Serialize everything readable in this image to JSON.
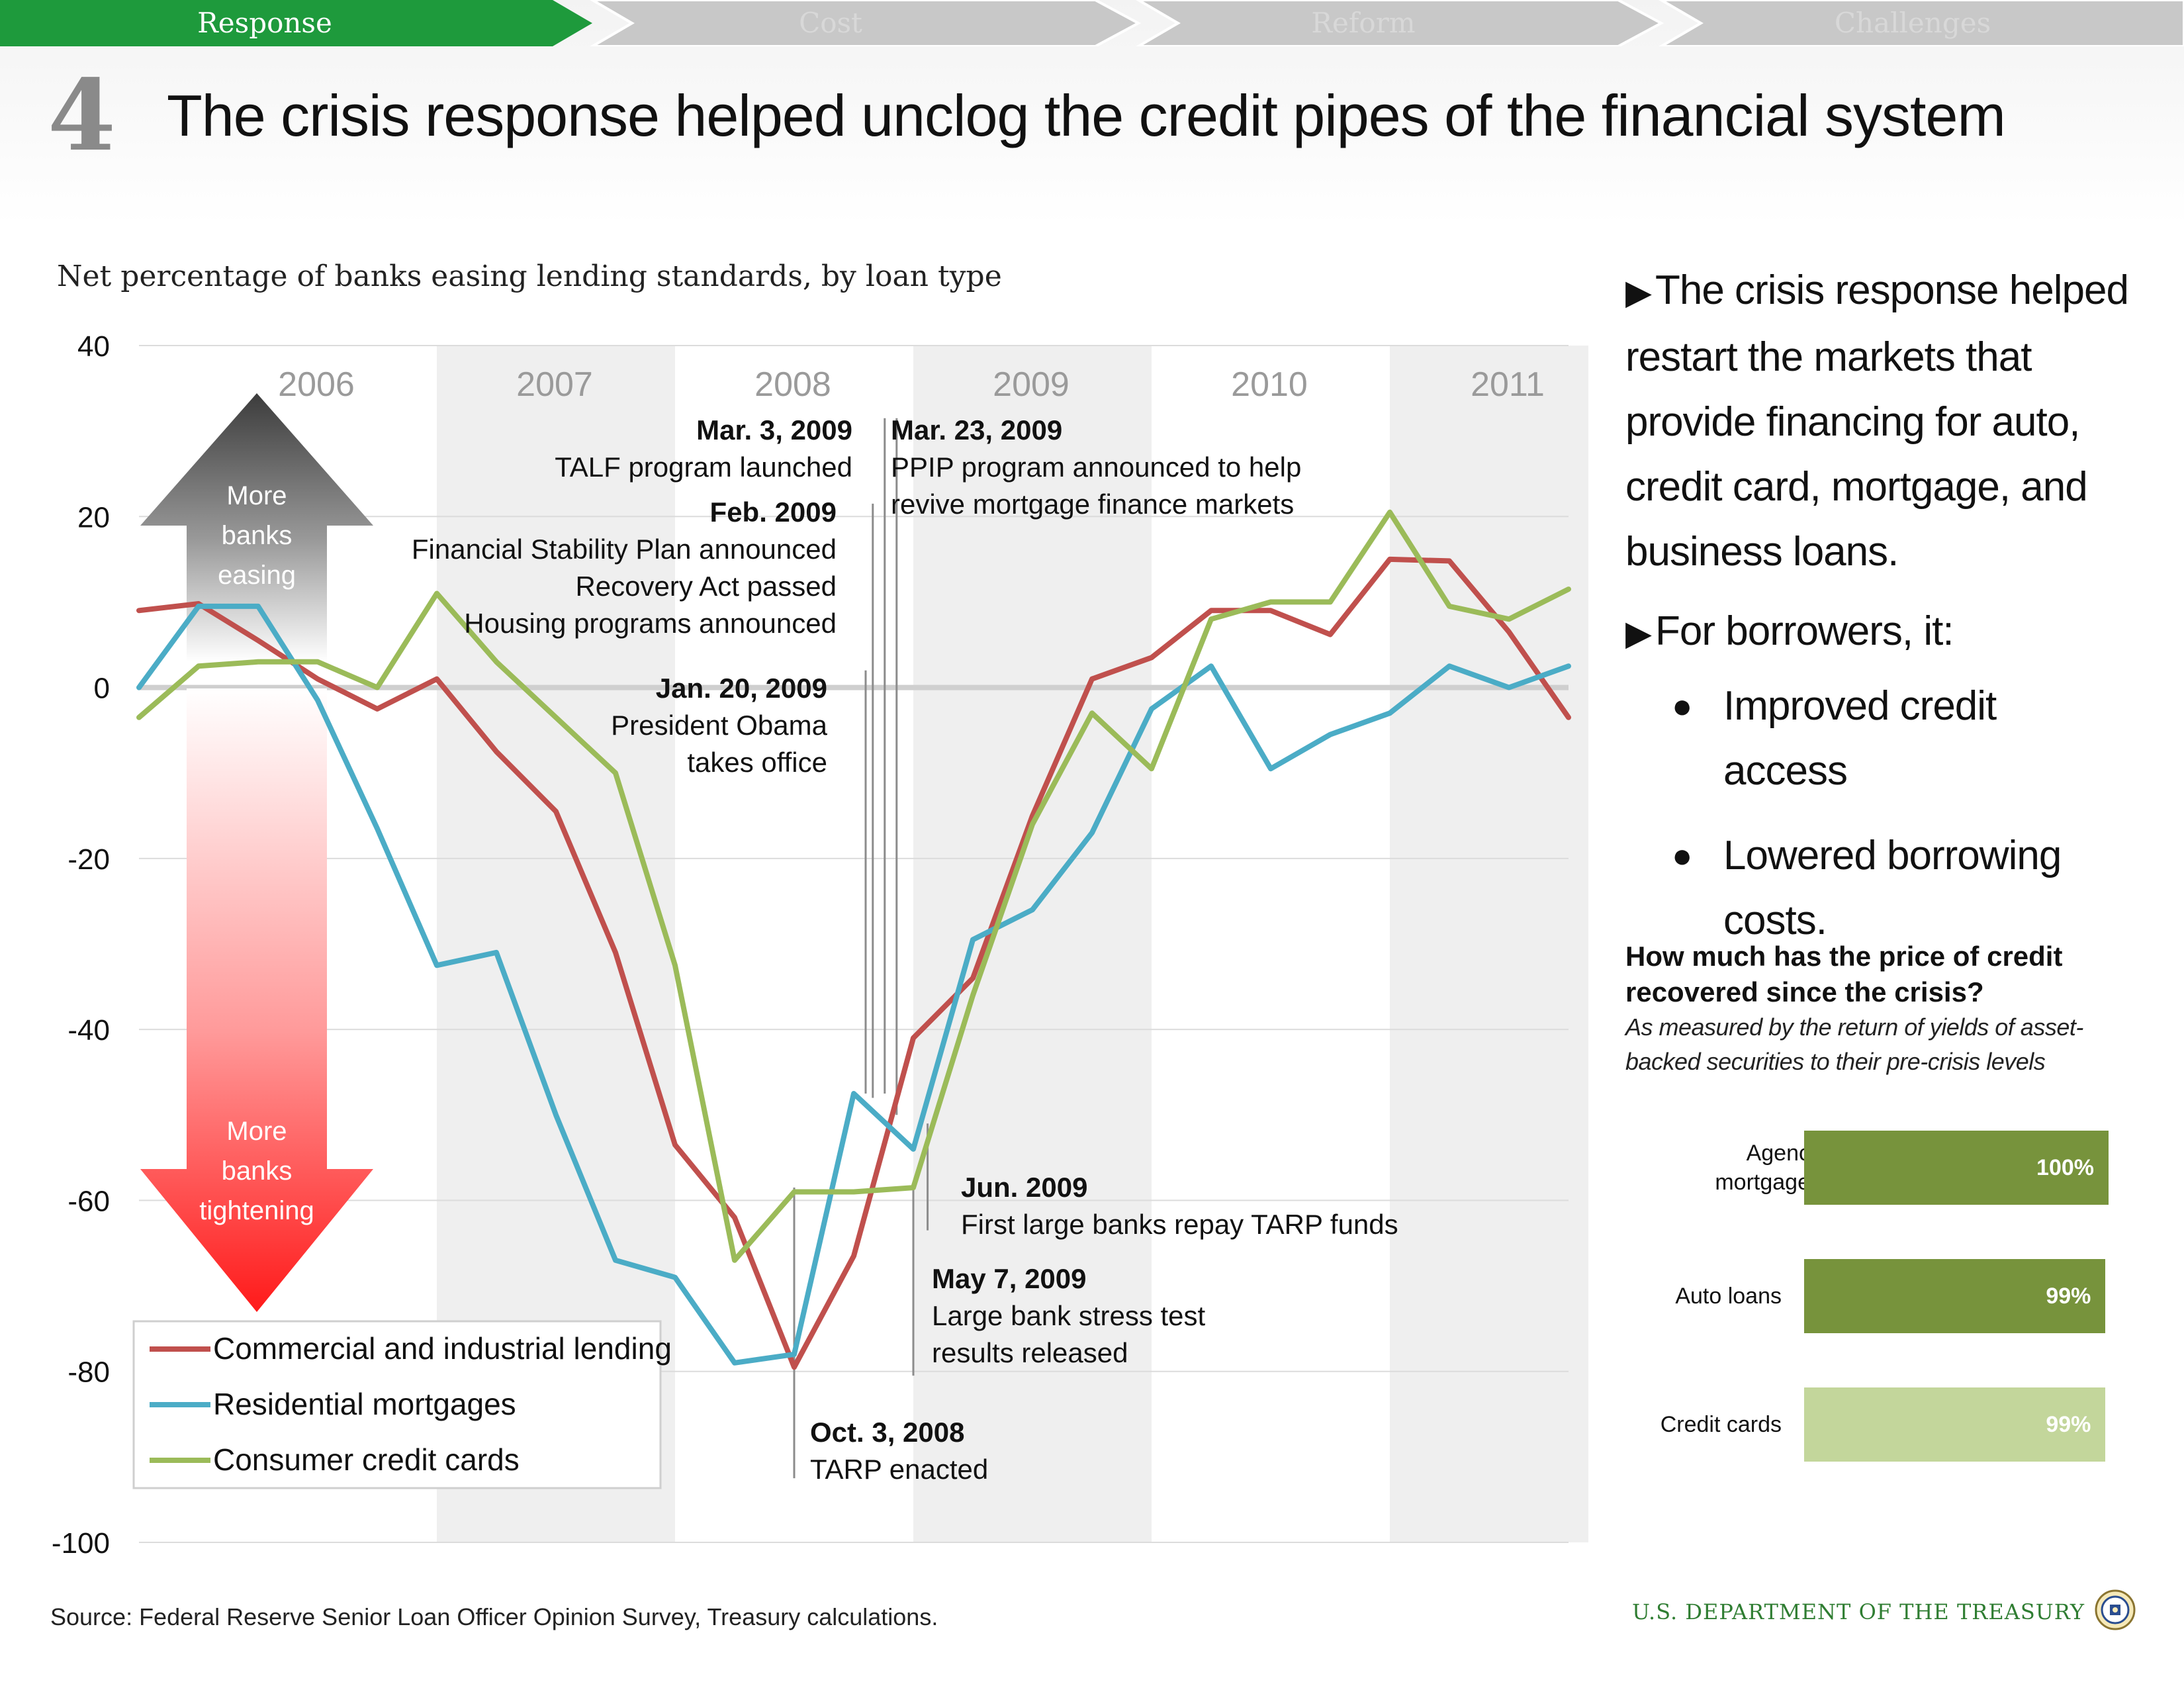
{
  "nav": {
    "tabs": [
      {
        "label": "Response",
        "active": true
      },
      {
        "label": "Cost",
        "active": false
      },
      {
        "label": "Reform",
        "active": false
      },
      {
        "label": "Challenges",
        "active": false
      }
    ],
    "active_color": "#1e9a3c",
    "inactive_color": "#c8c8c8"
  },
  "header": {
    "number": "4",
    "title": "The crisis response helped unclog the credit pipes of the financial system"
  },
  "chart_data": {
    "type": "line",
    "title": "Net percentage of banks easing lending standards, by loan type",
    "xlabel": "",
    "ylabel": "",
    "ylim": [
      -100,
      40
    ],
    "yticks": [
      "40",
      "20",
      "0",
      "-20",
      "-40",
      "-60",
      "-80",
      "-100"
    ],
    "year_bands": [
      "2006",
      "2007",
      "2008",
      "2009",
      "2010",
      "2011"
    ],
    "grid": true,
    "legend_placement": "bottom-left",
    "series": [
      {
        "name": "Commercial and industrial lending",
        "color": "#c0504d",
        "values": [
          {
            "x": 2005.75,
            "y": 9
          },
          {
            "x": 2006.0,
            "y": 9.8
          },
          {
            "x": 2006.25,
            "y": 5.5
          },
          {
            "x": 2006.5,
            "y": 1
          },
          {
            "x": 2006.75,
            "y": -2.5
          },
          {
            "x": 2007.0,
            "y": 1
          },
          {
            "x": 2007.25,
            "y": -7.5
          },
          {
            "x": 2007.5,
            "y": -14.5
          },
          {
            "x": 2007.75,
            "y": -31
          },
          {
            "x": 2008.0,
            "y": -53.5
          },
          {
            "x": 2008.25,
            "y": -62
          },
          {
            "x": 2008.5,
            "y": -79.5
          },
          {
            "x": 2008.75,
            "y": -66.5
          },
          {
            "x": 2009.0,
            "y": -41
          },
          {
            "x": 2009.25,
            "y": -34
          },
          {
            "x": 2009.5,
            "y": -15
          },
          {
            "x": 2009.75,
            "y": 1
          },
          {
            "x": 2010.0,
            "y": 3.5
          },
          {
            "x": 2010.25,
            "y": 9
          },
          {
            "x": 2010.5,
            "y": 9
          },
          {
            "x": 2010.75,
            "y": 6.2
          },
          {
            "x": 2011.0,
            "y": 15
          },
          {
            "x": 2011.25,
            "y": 14.8
          },
          {
            "x": 2011.5,
            "y": 6.5
          },
          {
            "x": 2011.75,
            "y": -3.5
          }
        ]
      },
      {
        "name": "Residential mortgages",
        "color": "#4bacc6",
        "values": [
          {
            "x": 2005.75,
            "y": 0
          },
          {
            "x": 2006.0,
            "y": 9.5
          },
          {
            "x": 2006.25,
            "y": 9.5
          },
          {
            "x": 2006.5,
            "y": -1.5
          },
          {
            "x": 2006.75,
            "y": -16.5
          },
          {
            "x": 2007.0,
            "y": -32.5
          },
          {
            "x": 2007.25,
            "y": -31
          },
          {
            "x": 2007.5,
            "y": -50
          },
          {
            "x": 2007.75,
            "y": -67
          },
          {
            "x": 2008.0,
            "y": -69
          },
          {
            "x": 2008.25,
            "y": -79
          },
          {
            "x": 2008.5,
            "y": -78
          },
          {
            "x": 2008.75,
            "y": -47.5
          },
          {
            "x": 2009.0,
            "y": -54
          },
          {
            "x": 2009.25,
            "y": -29.5
          },
          {
            "x": 2009.5,
            "y": -26
          },
          {
            "x": 2009.75,
            "y": -17
          },
          {
            "x": 2010.0,
            "y": -2.5
          },
          {
            "x": 2010.25,
            "y": 2.5
          },
          {
            "x": 2010.5,
            "y": -9.5
          },
          {
            "x": 2010.75,
            "y": -5.5
          },
          {
            "x": 2011.0,
            "y": -3
          },
          {
            "x": 2011.25,
            "y": 2.5
          },
          {
            "x": 2011.5,
            "y": 0
          },
          {
            "x": 2011.75,
            "y": 2.5
          }
        ]
      },
      {
        "name": "Consumer credit cards",
        "color": "#9bbb59",
        "values": [
          {
            "x": 2005.75,
            "y": -3.5
          },
          {
            "x": 2006.0,
            "y": 2.5
          },
          {
            "x": 2006.25,
            "y": 3
          },
          {
            "x": 2006.5,
            "y": 3
          },
          {
            "x": 2006.75,
            "y": 0
          },
          {
            "x": 2007.0,
            "y": 11
          },
          {
            "x": 2007.25,
            "y": 3
          },
          {
            "x": 2007.5,
            "y": -3.5
          },
          {
            "x": 2007.75,
            "y": -10
          },
          {
            "x": 2008.0,
            "y": -32.5
          },
          {
            "x": 2008.25,
            "y": -67
          },
          {
            "x": 2008.5,
            "y": -59
          },
          {
            "x": 2008.75,
            "y": -59
          },
          {
            "x": 2009.0,
            "y": -58.5
          },
          {
            "x": 2009.25,
            "y": -36
          },
          {
            "x": 2009.5,
            "y": -16
          },
          {
            "x": 2009.75,
            "y": -3
          },
          {
            "x": 2010.0,
            "y": -9.5
          },
          {
            "x": 2010.25,
            "y": 8
          },
          {
            "x": 2010.5,
            "y": 10
          },
          {
            "x": 2010.75,
            "y": 10
          },
          {
            "x": 2011.0,
            "y": 20.5
          },
          {
            "x": 2011.25,
            "y": 9.5
          },
          {
            "x": 2011.5,
            "y": 8
          },
          {
            "x": 2011.75,
            "y": 11.5
          }
        ]
      }
    ],
    "annotations": [
      {
        "date": "Mar. 3, 2009",
        "text": [
          "TALF program launched"
        ],
        "x": 2008.88,
        "y_top": 31.5,
        "y_bottom": -47.5,
        "align": "right"
      },
      {
        "date": "Mar. 23, 2009",
        "text": [
          "PPIP program announced to help",
          "revive mortgage finance markets"
        ],
        "x": 2008.93,
        "y_top": 31.5,
        "y_bottom": -50,
        "align": "left"
      },
      {
        "date": "Feb. 2009",
        "text": [
          "Financial Stability Plan announced",
          "Recovery Act passed",
          "Housing programs announced"
        ],
        "x": 2008.83,
        "y_top": 21.5,
        "y_bottom": -48,
        "align": "right"
      },
      {
        "date": "Jan. 20, 2009",
        "text": [
          "President Obama",
          "takes office"
        ],
        "x": 2008.8,
        "y_top": 2,
        "y_bottom": -47.5,
        "align": "right"
      },
      {
        "date": "Oct. 3, 2008",
        "text": [
          "TARP enacted"
        ],
        "x": 2008.5,
        "y_top": -58.5,
        "y_bottom": -92.5,
        "align": "left"
      },
      {
        "date": "May 7, 2009",
        "text": [
          "Large bank stress test",
          "results released"
        ],
        "x": 2009.0,
        "y_top": -58.5,
        "y_bottom": -80.5,
        "align": "left"
      },
      {
        "date": "Jun. 2009",
        "text": [
          "First large banks repay TARP funds"
        ],
        "x": 2009.06,
        "y_top": -51,
        "y_bottom": -63.5,
        "align": "left"
      }
    ],
    "arrows": {
      "up_label": [
        "More",
        "banks",
        "easing"
      ],
      "down_label": [
        "More",
        "banks",
        "tightening"
      ]
    }
  },
  "side_panel": {
    "bullet1": "The crisis response helped restart the markets that provide financing for auto, credit card, mortgage, and business loans.",
    "bullet2": "For borrowers, it:",
    "sub_bullets": [
      "Improved credit access",
      "Lowered borrowing costs."
    ]
  },
  "credit_recovery": {
    "title": "How much has the price of credit recovered since the crisis?",
    "description": "As measured by the return of yields of asset-backed securities to their pre-crisis levels",
    "bars": [
      {
        "label": "Agency mortgages",
        "value": 100,
        "display": "100%",
        "color": "#77933c"
      },
      {
        "label": "Auto loans",
        "value": 99,
        "display": "99%",
        "color": "#77933c"
      },
      {
        "label": "Credit cards",
        "value": 99,
        "display": "99%",
        "color": "#c3d69b"
      }
    ]
  },
  "footer": {
    "source": "Source: Federal Reserve Senior Loan Officer Opinion Survey, Treasury calculations.",
    "agency": "U.S. DEPARTMENT OF THE TREASURY"
  }
}
